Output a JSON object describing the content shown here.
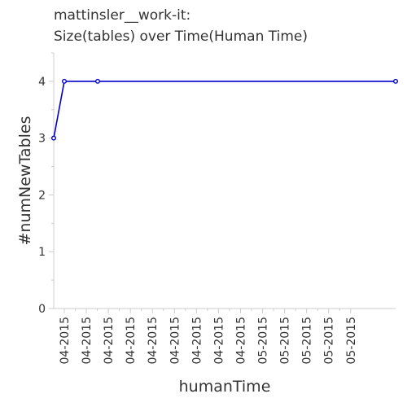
{
  "chart_data": {
    "type": "line",
    "title": "mattinsler__work-it:",
    "subtitle": "Size(tables) over Time(Human Time)",
    "xlabel": "humanTime",
    "ylabel": "#numNewTables",
    "ylim": [
      0,
      4.5
    ],
    "yticks": [
      0,
      1,
      2,
      3,
      4
    ],
    "xtick_labels": [
      "04-2015",
      "04-2015",
      "04-2015",
      "04-2015",
      "04-2015",
      "04-2015",
      "04-2015",
      "04-2015",
      "04-2015",
      "05-2015",
      "05-2015",
      "05-2015",
      "05-2015",
      "05-2015"
    ],
    "grid": false,
    "legend": "none",
    "series": [
      {
        "color": "#0000cc",
        "x": [
          "04-2015",
          "04-2015",
          "04-2015",
          "05-2015"
        ],
        "values": [
          3,
          4,
          4,
          4
        ]
      }
    ]
  }
}
